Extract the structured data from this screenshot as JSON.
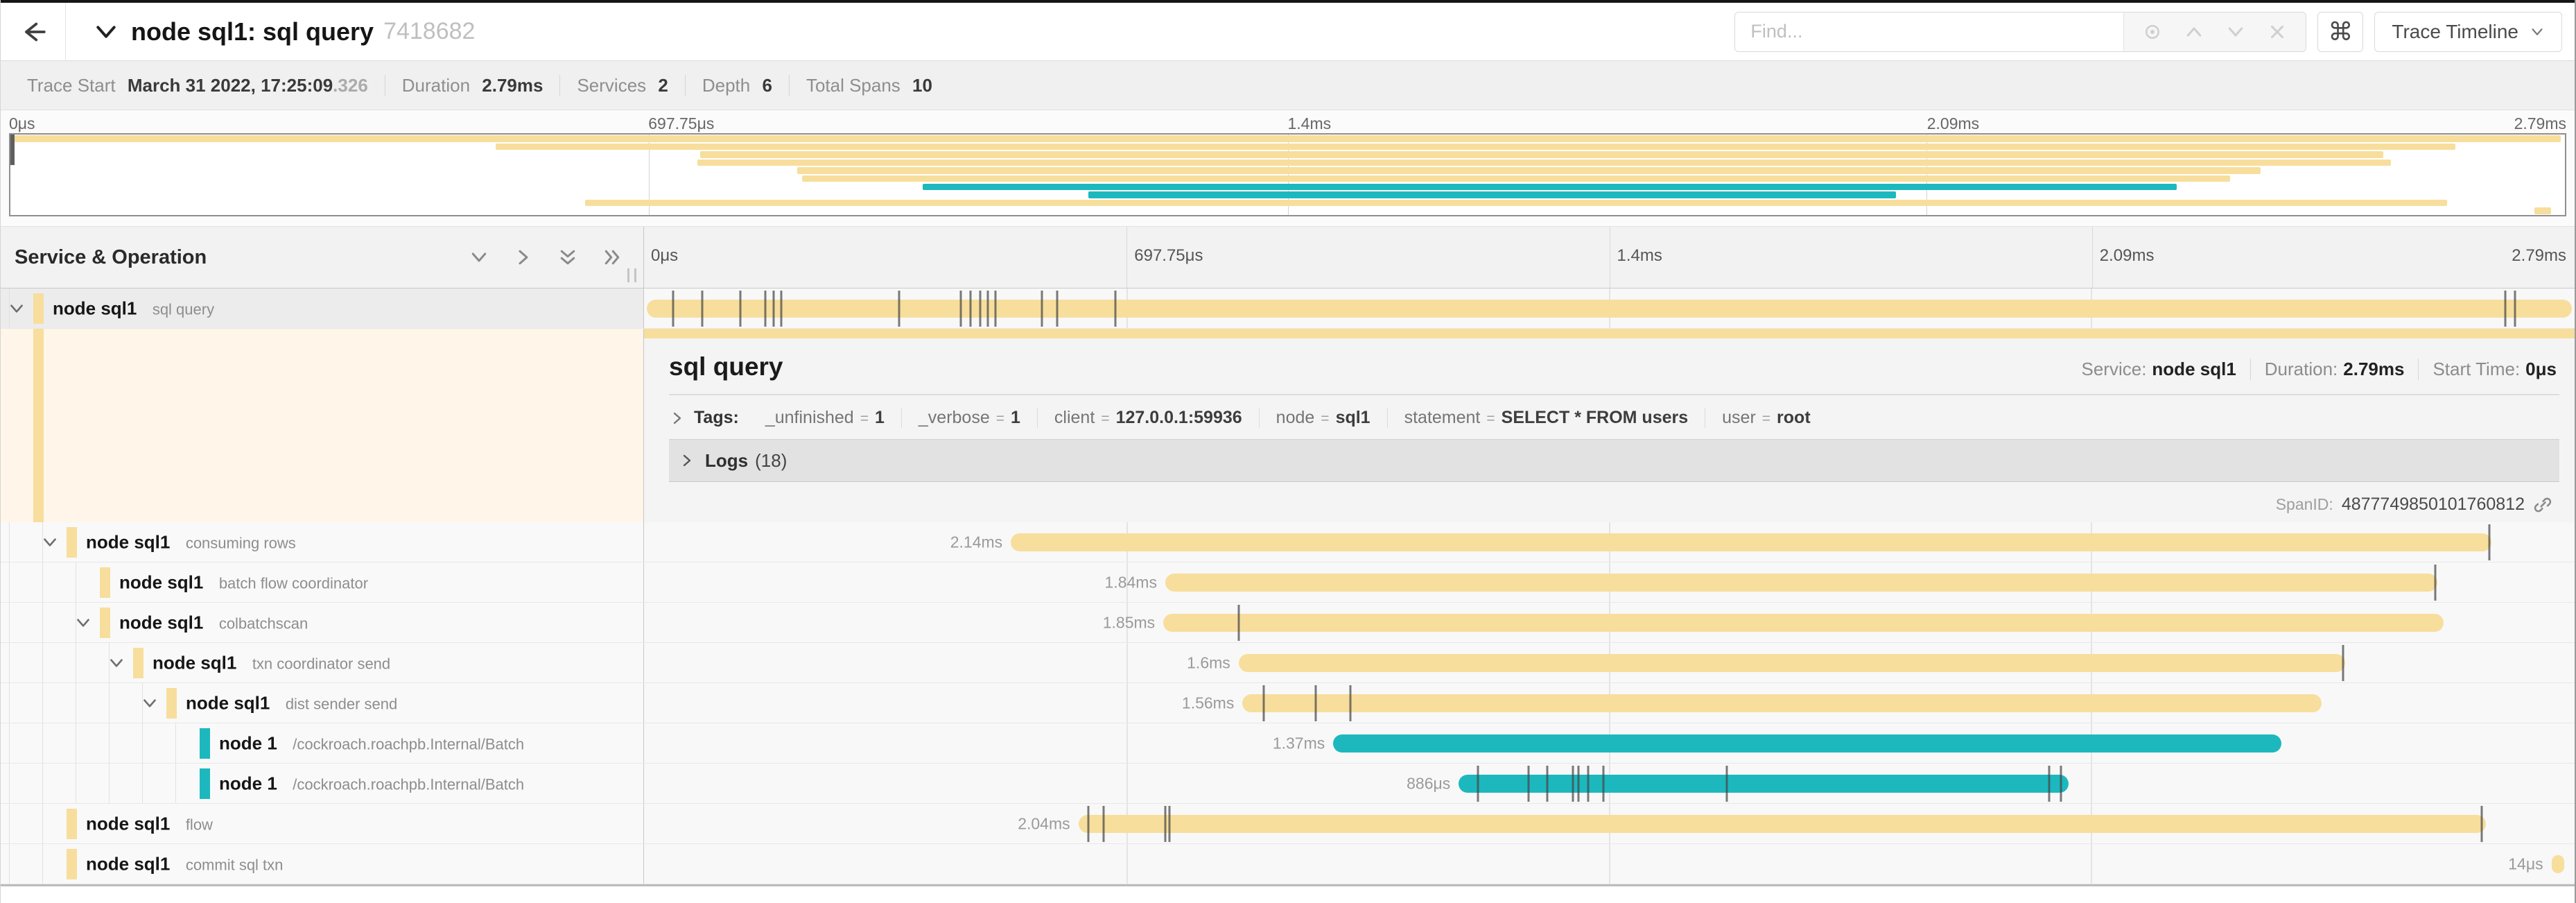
{
  "colors": {
    "tan": "#F7DE9C",
    "teal": "#1CB8BE"
  },
  "header": {
    "title": "node sql1: sql query",
    "trace_id": "7418682",
    "find_placeholder": "Find...",
    "command_key": "⌘",
    "view_selector": "Trace Timeline"
  },
  "trace_info": {
    "items": [
      {
        "label": "Trace Start",
        "value": "March 31 2022, 17:25:09",
        "suffix": ".326"
      },
      {
        "label": "Duration",
        "value": "2.79ms"
      },
      {
        "label": "Services",
        "value": "2"
      },
      {
        "label": "Depth",
        "value": "6"
      },
      {
        "label": "Total Spans",
        "value": "10"
      }
    ]
  },
  "timeline_ticks": [
    {
      "label": "0μs",
      "pct": 0
    },
    {
      "label": "697.75μs",
      "pct": 25
    },
    {
      "label": "1.4ms",
      "pct": 50
    },
    {
      "label": "2.09ms",
      "pct": 75
    },
    {
      "label": "2.79ms",
      "pct": 100
    }
  ],
  "left_panel": {
    "title": "Service & Operation"
  },
  "detail": {
    "operation": "sql query",
    "service_label": "Service:",
    "service": "node sql1",
    "duration_label": "Duration:",
    "duration": "2.79ms",
    "start_label": "Start Time:",
    "start_time": "0μs",
    "tags_label": "Tags:",
    "tags": [
      {
        "key": "_unfinished",
        "value": "1"
      },
      {
        "key": "_verbose",
        "value": "1"
      },
      {
        "key": "client",
        "value": "127.0.0.1:59936"
      },
      {
        "key": "node",
        "value": "sql1"
      },
      {
        "key": "statement",
        "value": "SELECT * FROM users"
      },
      {
        "key": "user",
        "value": "root"
      }
    ],
    "logs_label": "Logs",
    "logs_count": "(18)",
    "span_id_label": "SpanID:",
    "span_id": "4877749850101760812"
  },
  "spans": [
    {
      "service": "node sql1",
      "operation": "sql query",
      "depth": 0,
      "color": "tan",
      "duration": "",
      "start_pct": 0.15,
      "width_pct": 99.7,
      "expander": true,
      "selected": true,
      "log_ticks": [
        1.5,
        3,
        5,
        6.3,
        6.7,
        7.1,
        13.2,
        16.4,
        16.9,
        17.4,
        17.8,
        18.2,
        20.6,
        21.4,
        24.4,
        96.4,
        96.9
      ]
    },
    {
      "service": "node sql1",
      "operation": "consuming rows",
      "depth": 1,
      "color": "tan",
      "duration": "2.14ms",
      "start_pct": 19.0,
      "width_pct": 76.7,
      "expander": true,
      "log_ticks": [
        95.6
      ]
    },
    {
      "service": "node sql1",
      "operation": "batch flow coordinator",
      "depth": 2,
      "color": "tan",
      "duration": "1.84ms",
      "start_pct": 27.0,
      "width_pct": 65.9,
      "expander": false,
      "log_ticks": [
        92.8
      ]
    },
    {
      "service": "node sql1",
      "operation": "colbatchscan",
      "depth": 2,
      "color": "tan",
      "duration": "1.85ms",
      "start_pct": 26.9,
      "width_pct": 66.3,
      "expander": true,
      "log_ticks": [
        30.8
      ]
    },
    {
      "service": "node sql1",
      "operation": "txn coordinator send",
      "depth": 3,
      "color": "tan",
      "duration": "1.6ms",
      "start_pct": 30.8,
      "width_pct": 57.3,
      "expander": true,
      "log_ticks": [
        88.0
      ]
    },
    {
      "service": "node sql1",
      "operation": "dist sender send",
      "depth": 4,
      "color": "tan",
      "duration": "1.56ms",
      "start_pct": 31.0,
      "width_pct": 55.9,
      "expander": true,
      "log_ticks": [
        32.1,
        34.8,
        36.6
      ]
    },
    {
      "service": "node 1",
      "operation": "/cockroach.roachpb.Internal/Batch",
      "depth": 5,
      "color": "teal",
      "duration": "1.37ms",
      "start_pct": 35.7,
      "width_pct": 49.1,
      "expander": false,
      "log_ticks": []
    },
    {
      "service": "node 1",
      "operation": "/cockroach.roachpb.Internal/Batch",
      "depth": 5,
      "color": "teal",
      "duration": "886μs",
      "start_pct": 42.2,
      "width_pct": 31.6,
      "expander": false,
      "log_ticks": [
        43.2,
        45.8,
        46.8,
        48.1,
        48.4,
        48.9,
        49.7,
        56.1,
        72.8,
        73.4
      ]
    },
    {
      "service": "node sql1",
      "operation": "flow",
      "depth": 1,
      "color": "tan",
      "duration": "2.04ms",
      "start_pct": 22.5,
      "width_pct": 72.9,
      "expander": false,
      "log_ticks": [
        23.0,
        23.8,
        27.0,
        27.2,
        95.2
      ]
    },
    {
      "service": "node sql1",
      "operation": "commit sql txn",
      "depth": 1,
      "color": "tan",
      "duration": "14μs",
      "start_pct": 98.8,
      "width_pct": 0.65,
      "expander": false,
      "log_ticks": []
    }
  ]
}
